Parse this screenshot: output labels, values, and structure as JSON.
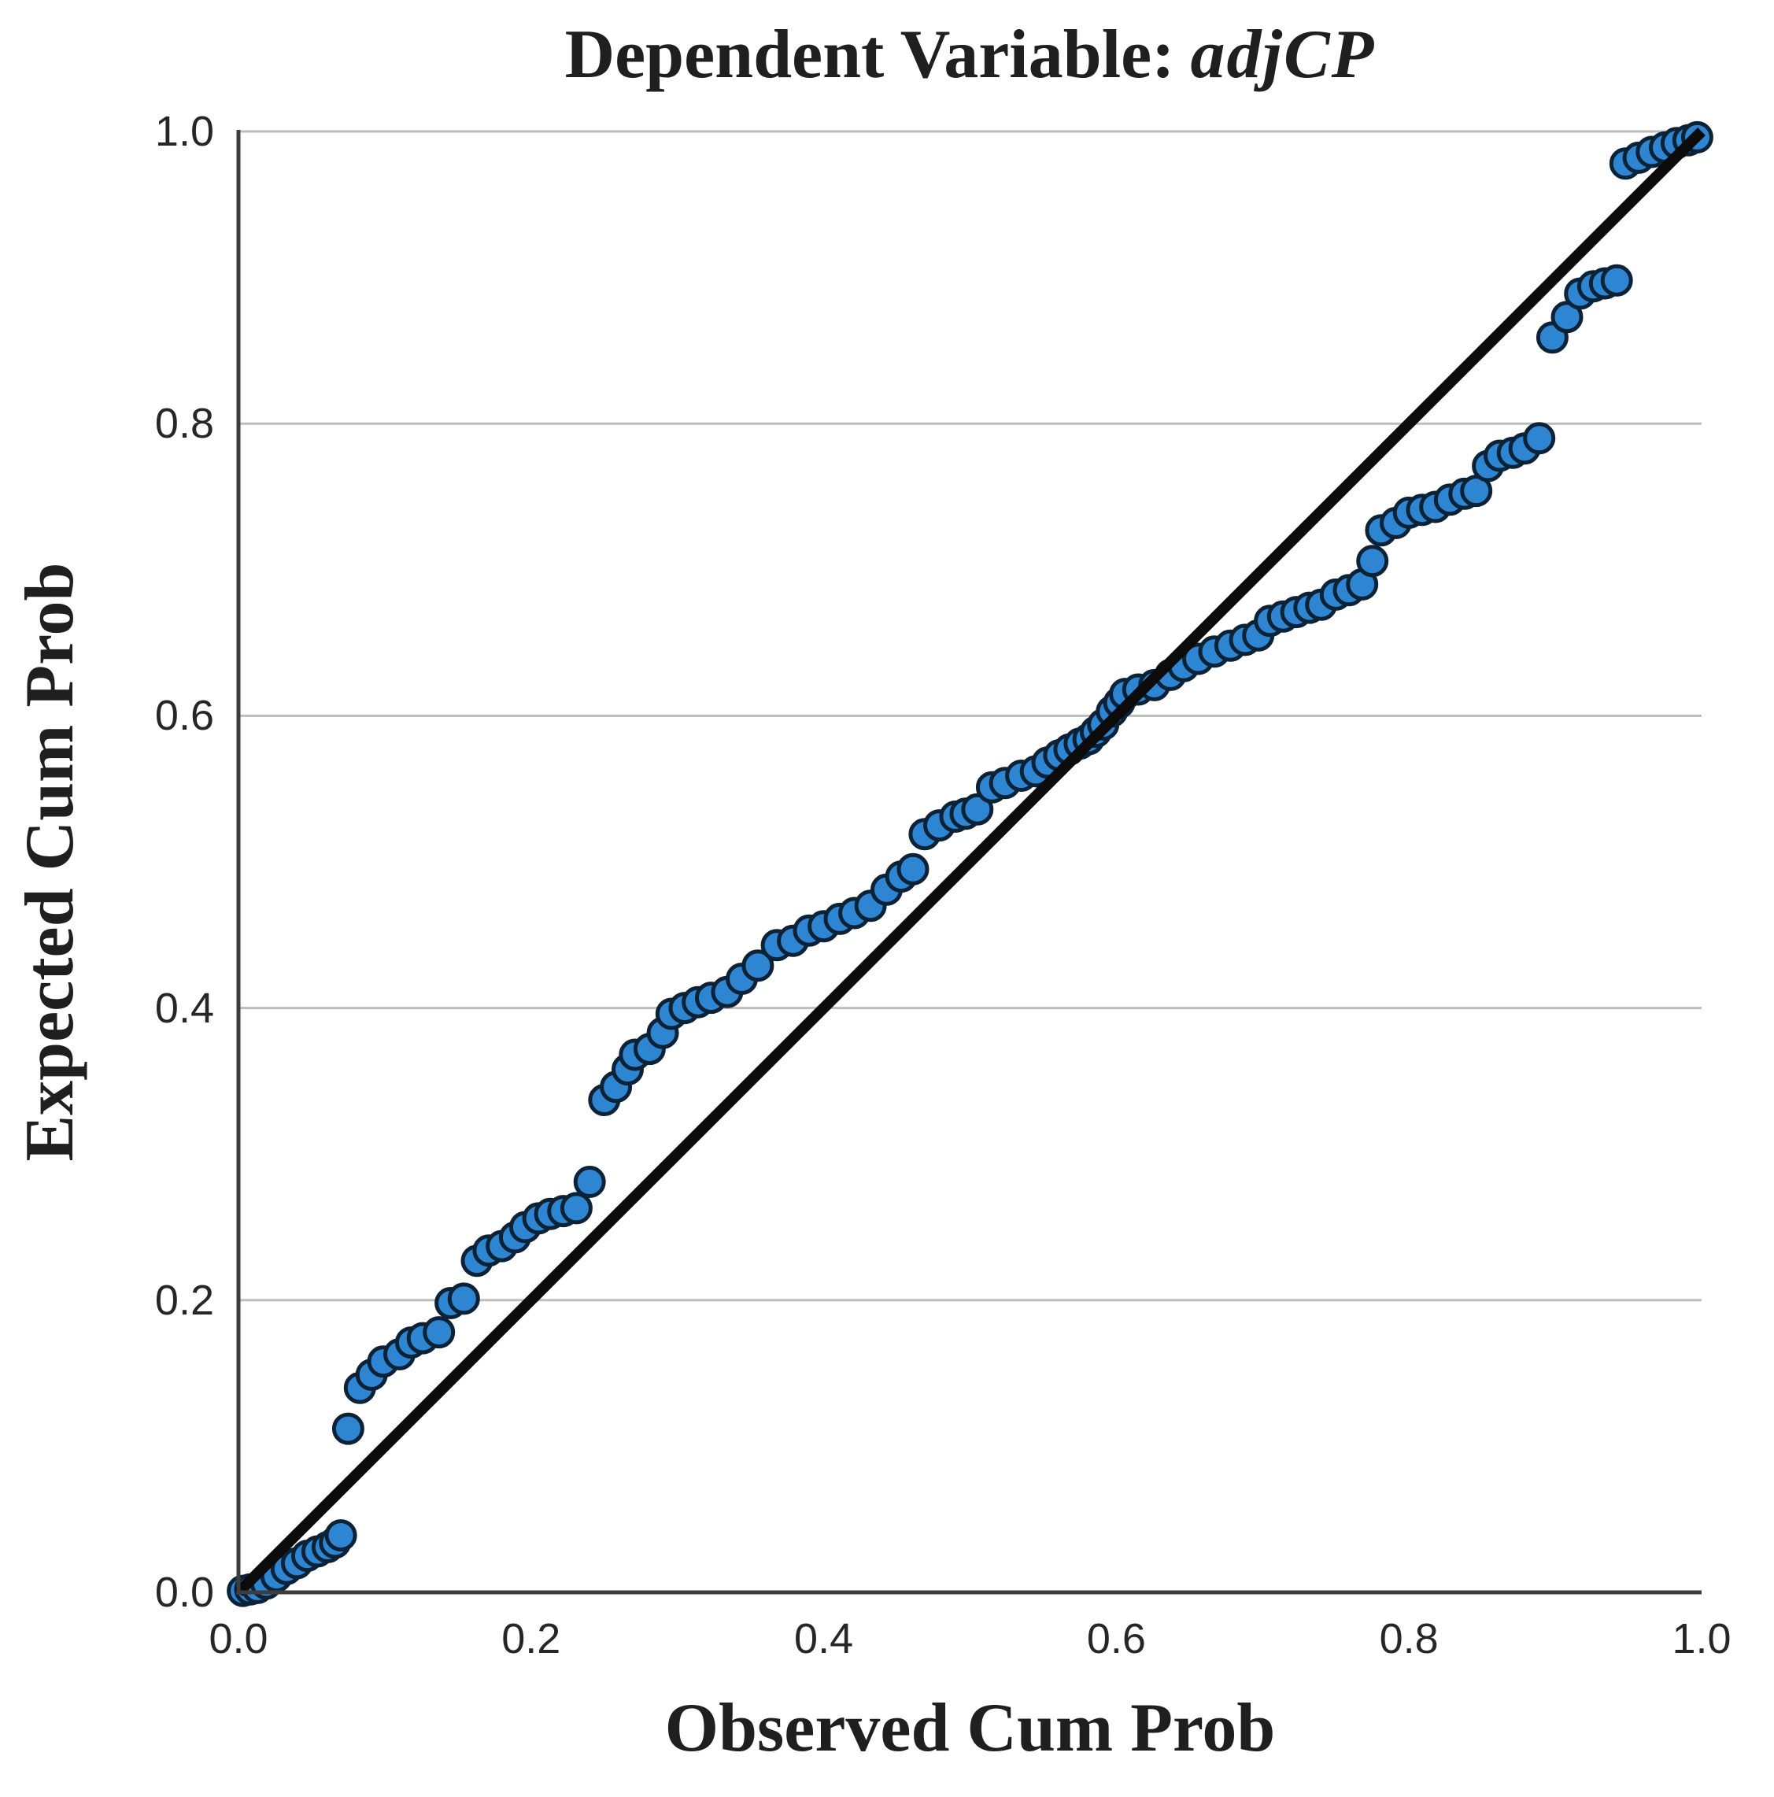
{
  "title": {
    "prefix": "Dependent Variable:",
    "variable": "adjCP"
  },
  "axes": {
    "x_ticks": [
      "0.0",
      "0.2",
      "0.4",
      "0.6",
      "0.8",
      "1.0"
    ],
    "y_ticks": [
      "0.0",
      "0.2",
      "0.4",
      "0.6",
      "0.8",
      "1.0"
    ]
  },
  "colors": {
    "background": "#ffffff",
    "grid": "#bdbdbd",
    "axis": "#3d3d3d",
    "reference_line": "#0b0b0b",
    "marker_fill": "#2e86d2",
    "marker_stroke": "#0c2236",
    "text": "#1f1f1f"
  },
  "chart_data": {
    "type": "scatter",
    "title": "Dependent Variable: adjCP",
    "xlabel": "Observed Cum Prob",
    "ylabel": "Expected Cum Prob",
    "xlim": [
      0,
      1
    ],
    "ylim": [
      0,
      1
    ],
    "grid": "horizontal gridlines at 0.2 intervals",
    "gridlines_y": [
      0.2,
      0.4,
      0.6,
      0.8,
      1.0
    ],
    "legend": "none",
    "reference_line": {
      "from": [
        0,
        0
      ],
      "to": [
        1,
        1
      ]
    },
    "points": [
      [
        0.003,
        0.001
      ],
      [
        0.008,
        0.002
      ],
      [
        0.013,
        0.003
      ],
      [
        0.019,
        0.006
      ],
      [
        0.026,
        0.011
      ],
      [
        0.033,
        0.016
      ],
      [
        0.04,
        0.02
      ],
      [
        0.047,
        0.025
      ],
      [
        0.054,
        0.028
      ],
      [
        0.061,
        0.031
      ],
      [
        0.066,
        0.034
      ],
      [
        0.07,
        0.039
      ],
      [
        0.075,
        0.112
      ],
      [
        0.083,
        0.14
      ],
      [
        0.091,
        0.149
      ],
      [
        0.099,
        0.158
      ],
      [
        0.11,
        0.163
      ],
      [
        0.118,
        0.171
      ],
      [
        0.126,
        0.174
      ],
      [
        0.137,
        0.178
      ],
      [
        0.145,
        0.198
      ],
      [
        0.154,
        0.201
      ],
      [
        0.163,
        0.227
      ],
      [
        0.171,
        0.234
      ],
      [
        0.18,
        0.237
      ],
      [
        0.189,
        0.243
      ],
      [
        0.196,
        0.25
      ],
      [
        0.205,
        0.256
      ],
      [
        0.213,
        0.259
      ],
      [
        0.222,
        0.261
      ],
      [
        0.231,
        0.263
      ],
      [
        0.24,
        0.281
      ],
      [
        0.25,
        0.337
      ],
      [
        0.258,
        0.346
      ],
      [
        0.266,
        0.358
      ],
      [
        0.271,
        0.368
      ],
      [
        0.281,
        0.372
      ],
      [
        0.29,
        0.383
      ],
      [
        0.296,
        0.396
      ],
      [
        0.305,
        0.4
      ],
      [
        0.314,
        0.404
      ],
      [
        0.323,
        0.407
      ],
      [
        0.334,
        0.411
      ],
      [
        0.344,
        0.42
      ],
      [
        0.355,
        0.429
      ],
      [
        0.368,
        0.443
      ],
      [
        0.379,
        0.446
      ],
      [
        0.39,
        0.453
      ],
      [
        0.4,
        0.456
      ],
      [
        0.411,
        0.461
      ],
      [
        0.421,
        0.465
      ],
      [
        0.432,
        0.47
      ],
      [
        0.443,
        0.481
      ],
      [
        0.453,
        0.49
      ],
      [
        0.461,
        0.495
      ],
      [
        0.469,
        0.519
      ],
      [
        0.479,
        0.525
      ],
      [
        0.49,
        0.531
      ],
      [
        0.497,
        0.533
      ],
      [
        0.505,
        0.536
      ],
      [
        0.515,
        0.551
      ],
      [
        0.524,
        0.554
      ],
      [
        0.535,
        0.559
      ],
      [
        0.545,
        0.562
      ],
      [
        0.553,
        0.568
      ],
      [
        0.561,
        0.573
      ],
      [
        0.568,
        0.577
      ],
      [
        0.575,
        0.581
      ],
      [
        0.581,
        0.584
      ],
      [
        0.586,
        0.589
      ],
      [
        0.591,
        0.594
      ],
      [
        0.597,
        0.603
      ],
      [
        0.602,
        0.609
      ],
      [
        0.606,
        0.615
      ],
      [
        0.615,
        0.618
      ],
      [
        0.626,
        0.621
      ],
      [
        0.637,
        0.628
      ],
      [
        0.646,
        0.634
      ],
      [
        0.656,
        0.639
      ],
      [
        0.667,
        0.644
      ],
      [
        0.678,
        0.648
      ],
      [
        0.688,
        0.652
      ],
      [
        0.697,
        0.655
      ],
      [
        0.705,
        0.665
      ],
      [
        0.714,
        0.668
      ],
      [
        0.723,
        0.671
      ],
      [
        0.732,
        0.674
      ],
      [
        0.74,
        0.676
      ],
      [
        0.75,
        0.683
      ],
      [
        0.759,
        0.686
      ],
      [
        0.768,
        0.69
      ],
      [
        0.775,
        0.706
      ],
      [
        0.781,
        0.727
      ],
      [
        0.791,
        0.732
      ],
      [
        0.8,
        0.739
      ],
      [
        0.809,
        0.741
      ],
      [
        0.818,
        0.743
      ],
      [
        0.828,
        0.748
      ],
      [
        0.838,
        0.752
      ],
      [
        0.846,
        0.754
      ],
      [
        0.854,
        0.771
      ],
      [
        0.862,
        0.778
      ],
      [
        0.871,
        0.78
      ],
      [
        0.879,
        0.783
      ],
      [
        0.889,
        0.79
      ],
      [
        0.898,
        0.859
      ],
      [
        0.908,
        0.873
      ],
      [
        0.917,
        0.889
      ],
      [
        0.926,
        0.894
      ],
      [
        0.934,
        0.896
      ],
      [
        0.942,
        0.898
      ],
      [
        0.948,
        0.978
      ],
      [
        0.957,
        0.982
      ],
      [
        0.966,
        0.986
      ],
      [
        0.975,
        0.989
      ],
      [
        0.983,
        0.992
      ],
      [
        0.991,
        0.994
      ],
      [
        0.997,
        0.996
      ]
    ]
  }
}
